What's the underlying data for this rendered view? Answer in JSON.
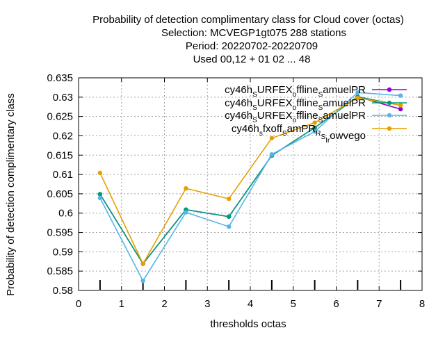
{
  "chart_data": {
    "type": "line",
    "title_lines": [
      "Probability of detection complimentary class  for Cloud cover (octas)",
      "Selection: MCVEGP1gt075     288 stations",
      "Period: 20220702-20220709",
      "Used  00,12  + 01 02 ... 48"
    ],
    "xlabel": "thresholds octas",
    "ylabel": "Probability of detection complimentary class",
    "xlim": [
      0,
      8
    ],
    "ylim": [
      0.58,
      0.635
    ],
    "x_ticks": [
      0,
      1,
      2,
      3,
      4,
      5,
      6,
      7,
      8
    ],
    "y_ticks": [
      0.58,
      0.585,
      0.59,
      0.595,
      0.6,
      0.605,
      0.61,
      0.615,
      0.62,
      0.625,
      0.63,
      0.635
    ],
    "grid": true,
    "legend_position": "top-right",
    "x": [
      0.5,
      1.5,
      2.5,
      3.5,
      4.5,
      5.5,
      6.5,
      7.5
    ],
    "series": [
      {
        "name_parts": [
          "cy46h",
          "S",
          "URFEX",
          "o",
          "ffline",
          "S",
          "amuelPR"
        ],
        "color": "#9400d3",
        "values": [
          0.6049,
          0.5869,
          0.6009,
          0.5991,
          0.6149,
          0.6221,
          0.6301,
          0.6269
        ]
      },
      {
        "name_parts": [
          "cy46h",
          "S",
          "URFEX",
          "o",
          "ffline",
          "S",
          "amuelPR"
        ],
        "color": "#009e73",
        "values": [
          0.6049,
          0.5869,
          0.6009,
          0.5991,
          0.6149,
          0.6221,
          0.6301,
          0.6279
        ]
      },
      {
        "name_parts": [
          "cy46h",
          "S",
          "URFEX",
          "o",
          "ffline",
          "S",
          "amuelPR"
        ],
        "color": "#56b4e9",
        "values": [
          0.6039,
          0.5825,
          0.6002,
          0.5965,
          0.6152,
          0.6211,
          0.6312,
          0.6304
        ]
      },
      {
        "name_parts": [
          "cy46h",
          "s",
          "fxoff",
          "S",
          "amPR",
          "R",
          "S",
          "Ir",
          "owvego"
        ],
        "color": "#e69f00",
        "values": [
          0.6104,
          0.5869,
          0.6064,
          0.6037,
          0.6194,
          0.6234,
          0.6298,
          0.6279
        ]
      }
    ],
    "rug_x": [
      0.5,
      1.5,
      2.5,
      3.5,
      4.5,
      5.5,
      6.5,
      7.5
    ]
  }
}
